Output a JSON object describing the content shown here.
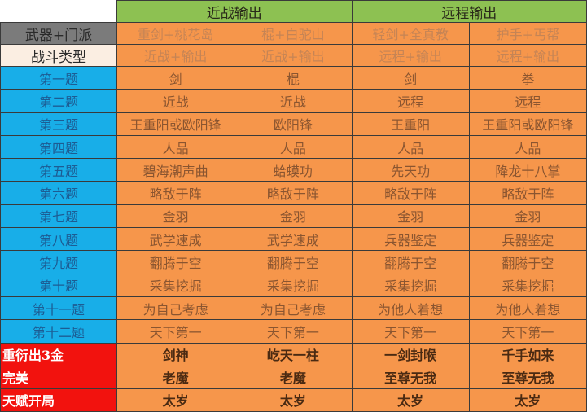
{
  "header": {
    "groups": [
      "近战输出",
      "远程输出"
    ]
  },
  "rows": [
    {
      "label": "武器+门派",
      "type": "grey",
      "cells": [
        "重剑+桃花岛",
        "棍+白驼山",
        "轻剑+全真教",
        "护手+丐帮"
      ]
    },
    {
      "label": "战斗类型",
      "type": "cream",
      "cells": [
        "近战+输出",
        "近战+输出",
        "远程+输出",
        "远程+输出"
      ]
    },
    {
      "label": "第一题",
      "type": "blue",
      "cells": [
        "剑",
        "棍",
        "剑",
        "拳"
      ]
    },
    {
      "label": "第二题",
      "type": "blue",
      "cells": [
        "近战",
        "近战",
        "远程",
        "远程"
      ]
    },
    {
      "label": "第三题",
      "type": "blue",
      "cells": [
        "王重阳或欧阳锋",
        "欧阳锋",
        "王重阳",
        "王重阳或欧阳锋"
      ]
    },
    {
      "label": "第四题",
      "type": "blue",
      "cells": [
        "人品",
        "人品",
        "人品",
        "人品"
      ]
    },
    {
      "label": "第五题",
      "type": "blue",
      "cells": [
        "碧海潮声曲",
        "蛤蟆功",
        "先天功",
        "降龙十八掌"
      ]
    },
    {
      "label": "第六题",
      "type": "blue",
      "cells": [
        "略敌于阵",
        "略敌于阵",
        "略敌于阵",
        "略敌于阵"
      ]
    },
    {
      "label": "第七题",
      "type": "blue",
      "cells": [
        "金羽",
        "金羽",
        "金羽",
        "金羽"
      ]
    },
    {
      "label": "第八题",
      "type": "blue",
      "cells": [
        "武学速成",
        "武学速成",
        "兵器鉴定",
        "兵器鉴定"
      ]
    },
    {
      "label": "第九题",
      "type": "blue",
      "cells": [
        "翻腾于空",
        "翻腾于空",
        "翻腾于空",
        "翻腾于空"
      ]
    },
    {
      "label": "第十题",
      "type": "blue",
      "cells": [
        "采集挖掘",
        "采集挖掘",
        "采集挖掘",
        "采集挖掘"
      ]
    },
    {
      "label": "第十一题",
      "type": "blue",
      "cells": [
        "为自己考虑",
        "为自己考虑",
        "为他人着想",
        "为他人着想"
      ]
    },
    {
      "label": "第十二题",
      "type": "blue",
      "cells": [
        "天下第一",
        "天下第一",
        "天下第一",
        "天下第一"
      ]
    },
    {
      "label": "重衍出3金",
      "type": "red",
      "cells": [
        "剑神",
        "屹天一柱",
        "一剑封喉",
        "千手如来"
      ]
    },
    {
      "label": "完美",
      "type": "red",
      "cells": [
        "老魔",
        "老魔",
        "至尊无我",
        "至尊无我"
      ]
    },
    {
      "label": "天赋开局",
      "type": "red",
      "cells": [
        "太岁",
        "太岁",
        "太岁",
        "太岁"
      ]
    }
  ]
}
